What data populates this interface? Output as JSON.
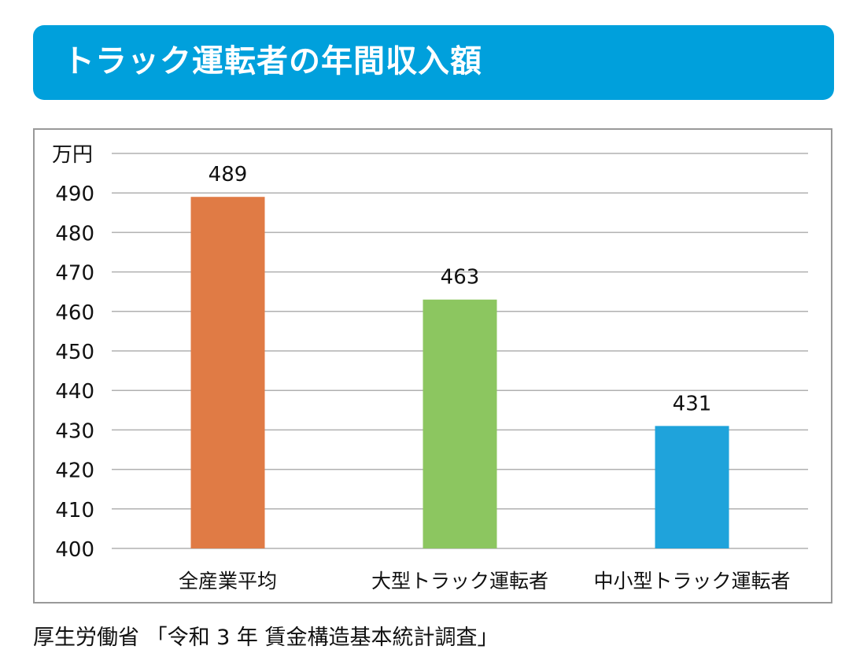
{
  "chart_data": {
    "type": "bar",
    "title": "トラック運転者の年間収入額",
    "unit_label": "万円",
    "categories": [
      "全産業平均",
      "大型トラック運転者",
      "中小型トラック運転者"
    ],
    "values": [
      489,
      463,
      431
    ],
    "data_labels": [
      "489",
      "463",
      "431"
    ],
    "colors": [
      "#e07b45",
      "#8cc660",
      "#1fa3db"
    ],
    "ylim": [
      400,
      500
    ],
    "yticks": [
      400,
      410,
      420,
      430,
      440,
      450,
      460,
      470,
      480,
      490
    ],
    "grid": true,
    "legend": "none"
  },
  "source": "厚生労働省 「令和 3 年 賃金構造基本統計調査」"
}
